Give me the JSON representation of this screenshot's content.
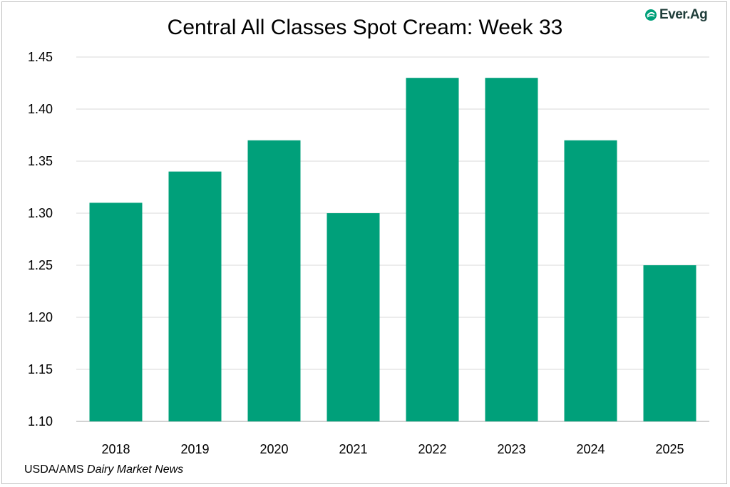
{
  "chart_data": {
    "type": "bar",
    "title": "Central All Classes Spot Cream: Week 33",
    "categories": [
      "2018",
      "2019",
      "2020",
      "2021",
      "2022",
      "2023",
      "2024",
      "2025"
    ],
    "values": [
      1.31,
      1.34,
      1.37,
      1.3,
      1.43,
      1.43,
      1.37,
      1.25
    ],
    "xlabel": "",
    "ylabel": "",
    "ylim": [
      1.1,
      1.45
    ],
    "yticks": [
      "1.10",
      "1.15",
      "1.20",
      "1.25",
      "1.30",
      "1.35",
      "1.40",
      "1.45"
    ],
    "grid": true,
    "bar_color": "#00a07a"
  },
  "logo": {
    "text": "Ever.Ag",
    "color": "#1f3d3a",
    "accent": "#00a07a"
  },
  "source": {
    "prefix": "USDA/AMS ",
    "italic": "Dairy Market News"
  }
}
